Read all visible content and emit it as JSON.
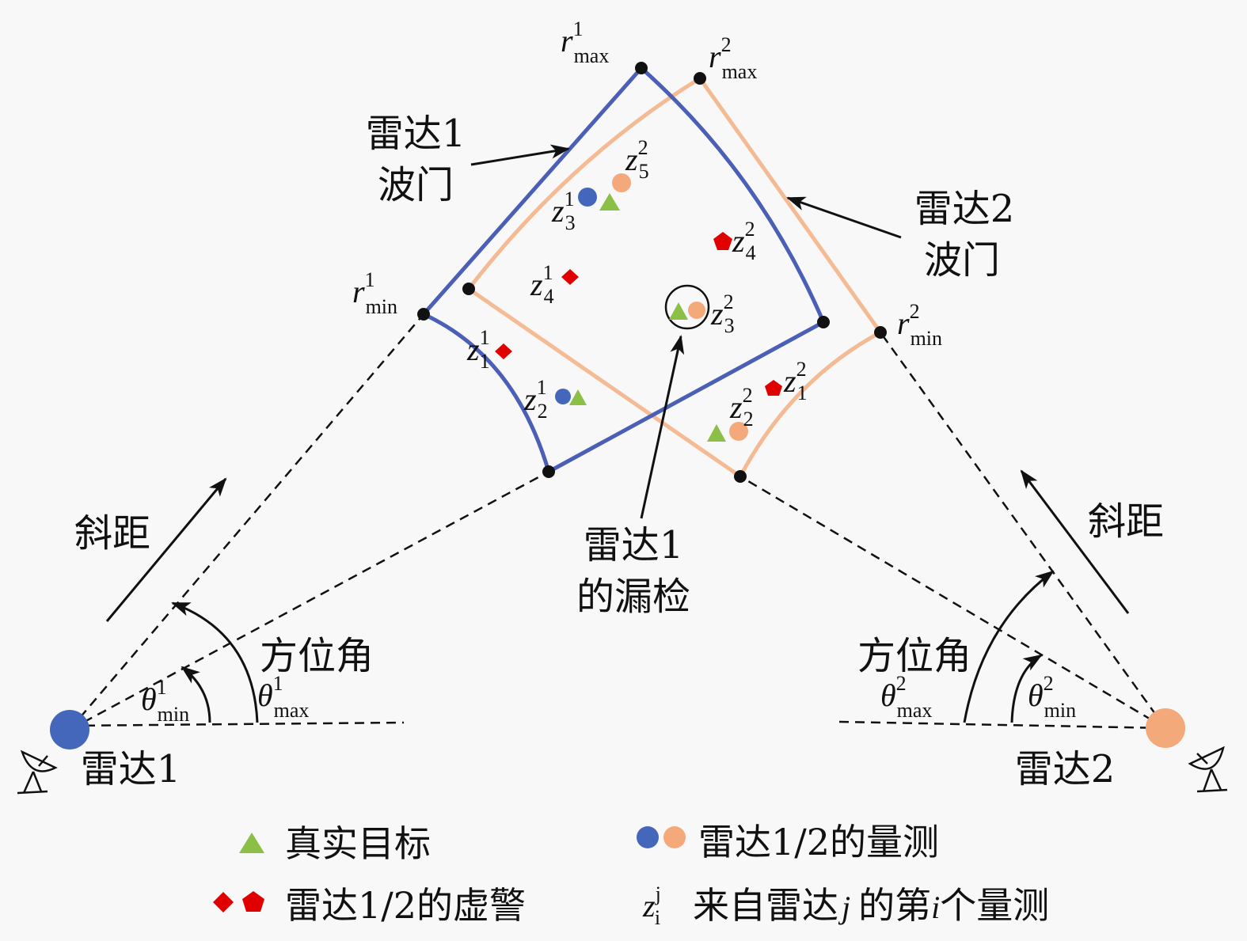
{
  "colors": {
    "radar1": "#4466bb",
    "radar2": "#f4a97a",
    "true_target": "#8cbf46",
    "false_alarm": "#e00000",
    "background": "#f8f8f8"
  },
  "labels": {
    "radar1_gate": [
      "雷达1",
      "波门"
    ],
    "radar2_gate": [
      "雷达2",
      "波门"
    ],
    "slant_range": "斜距",
    "azimuth": "方位角",
    "missed": [
      "雷达1",
      "的漏检"
    ],
    "radar1": "雷达1",
    "radar2": "雷达2"
  },
  "math": {
    "r": "r",
    "theta": "θ",
    "z": "z",
    "max": "max",
    "min": "min",
    "s1": "1",
    "s2": "2",
    "s3": "3",
    "s4": "4",
    "s5": "5",
    "i": "i",
    "j": "j"
  },
  "legend": {
    "true_target": "真实目标",
    "measurements": "雷达1/2的量测",
    "false_alarms": "雷达1/2的虚警",
    "notation_pre": "来自雷达",
    "notation_mid": "的第",
    "notation_post": "个量测"
  },
  "icons": [
    "radar-dish-icon"
  ]
}
